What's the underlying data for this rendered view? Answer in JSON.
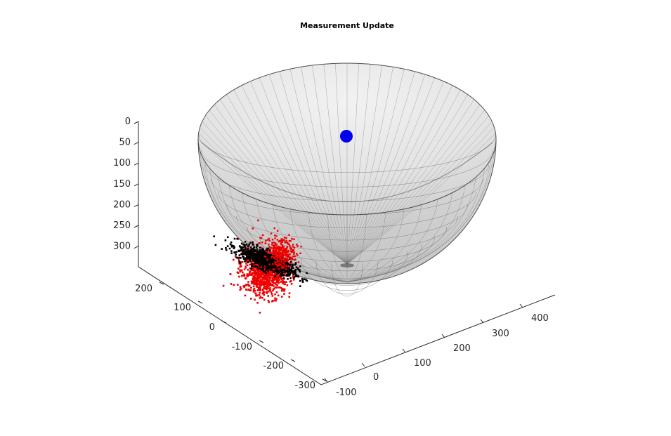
{
  "chart_data": {
    "type": "scatter",
    "title": "Measurement Update",
    "xlabel": "",
    "ylabel": "",
    "zlabel": "",
    "view": "3d",
    "grid": false,
    "legend": "none",
    "axes": {
      "x": {
        "range": [
          -100,
          450
        ],
        "ticks": [
          -100,
          0,
          100,
          200,
          300,
          400
        ],
        "tick_labels": [
          "-100",
          "0",
          "100",
          "200",
          "300",
          "400"
        ]
      },
      "y": {
        "range": [
          -330,
          250
        ],
        "ticks": [
          -300,
          -200,
          -100,
          0,
          100,
          200
        ],
        "tick_labels": [
          "-300",
          "-200",
          "-100",
          "0",
          "100",
          "200"
        ]
      },
      "z": {
        "range": [
          0,
          350
        ],
        "reversed": true,
        "ticks": [
          0,
          50,
          100,
          150,
          200,
          250,
          300
        ],
        "tick_labels": [
          "0",
          "50",
          "100",
          "150",
          "200",
          "250",
          "300"
        ]
      }
    },
    "series": [
      {
        "kind": "surface",
        "shape": "hemisphere",
        "color": "#d9d9d9",
        "edge_color": "#5a5a5a"
      },
      {
        "kind": "point",
        "color": "#0000ee"
      },
      {
        "kind": "particles",
        "color": "#ee0000"
      },
      {
        "kind": "particles",
        "color": "#000000"
      }
    ]
  }
}
